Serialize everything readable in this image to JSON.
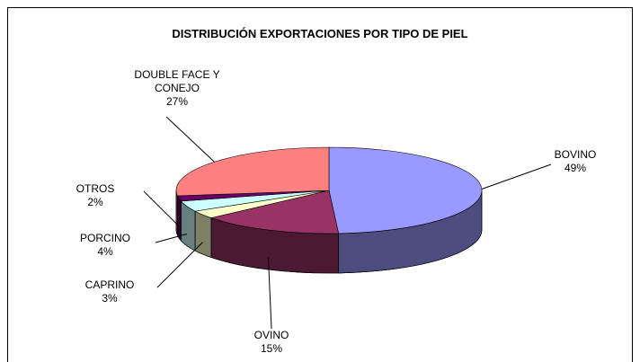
{
  "chart_data": {
    "type": "pie3d",
    "title": "DISTRIBUCIÓN EXPORTACIONES POR TIPO DE PIEL",
    "categories": [
      "BOVINO",
      "OVINO",
      "CAPRINO",
      "PORCINO",
      "OTROS",
      "DOUBLE FACE Y CONEJO"
    ],
    "values": [
      49,
      15,
      3,
      4,
      2,
      27
    ],
    "value_labels": [
      "49%",
      "15%",
      "3%",
      "4%",
      "2%",
      "27%"
    ],
    "colors": [
      "#9999ff",
      "#993366",
      "#ffffcc",
      "#ccffff",
      "#660066",
      "#ff8080"
    ]
  }
}
